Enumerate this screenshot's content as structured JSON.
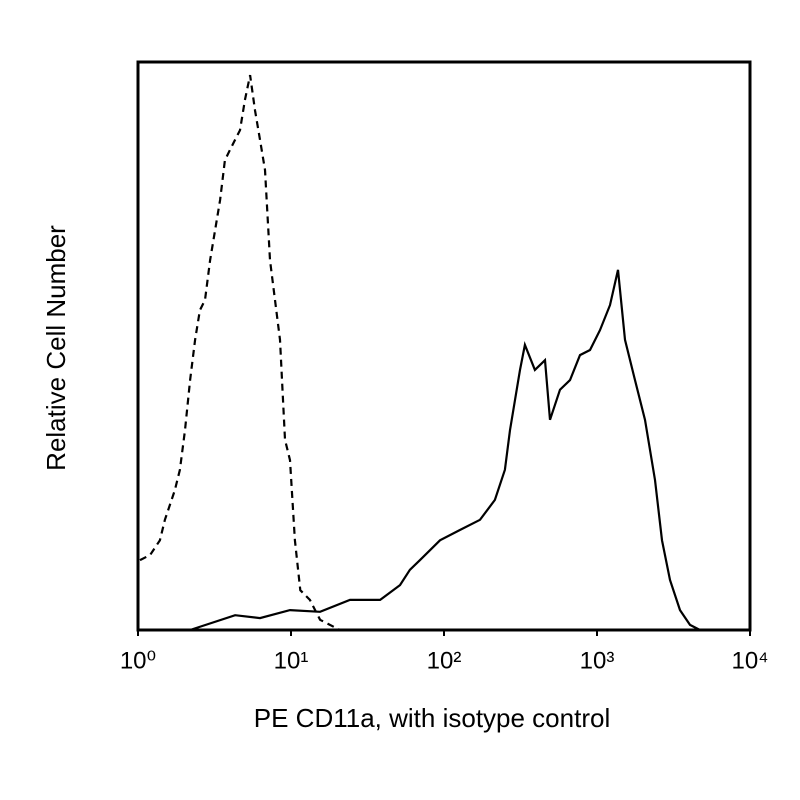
{
  "chart_data": {
    "type": "line",
    "x_label": "PE CD11a, with isotype control",
    "y_label": "Relative Cell Number",
    "xscale": "log",
    "xlim": [
      1,
      10000
    ],
    "xticks": [
      {
        "value": 1,
        "label": "10⁰"
      },
      {
        "value": 10,
        "label": "10¹"
      },
      {
        "value": 100,
        "label": "10²"
      },
      {
        "value": 1000,
        "label": "10³"
      },
      {
        "value": 10000,
        "label": "10⁴"
      }
    ],
    "ylim": [
      0,
      100
    ],
    "grid": false,
    "series": [
      {
        "color": "#000000",
        "dashed": true,
        "x": [
          1.03,
          1.2,
          1.39,
          1.5,
          1.74,
          1.88,
          2.03,
          2.19,
          2.36,
          2.54,
          2.74,
          2.96,
          3.19,
          3.44,
          3.7,
          3.99,
          4.31,
          4.64,
          5.0,
          5.4,
          5.82,
          6.27,
          6.76,
          7.29,
          7.86,
          8.48,
          9.14,
          9.85,
          10.6,
          11.5,
          13.3,
          15.5,
          20.9,
          51.6,
          1413
        ],
        "values": [
          12.3,
          13.2,
          15.8,
          19.4,
          24.6,
          28.2,
          35.2,
          44.0,
          51.1,
          56.3,
          58.1,
          65.1,
          70.4,
          75.7,
          82.7,
          84.5,
          86.3,
          88.0,
          93.3,
          97.7,
          91.5,
          86.3,
          81.0,
          65.1,
          58.1,
          51.1,
          33.5,
          29.9,
          15.8,
          7.0,
          5.3,
          1.8,
          0,
          0,
          0
        ]
      },
      {
        "color": "#000000",
        "dashed": false,
        "x": [
          2.19,
          4.31,
          6.27,
          9.85,
          15.5,
          24.3,
          38.2,
          51.6,
          59.9,
          69.7,
          94.2,
          127,
          172,
          215,
          250,
          270,
          291,
          314,
          338,
          393,
          457,
          493,
          573,
          666,
          774,
          900,
          1046,
          1216,
          1372,
          1524,
          1772,
          2060,
          2394,
          2660,
          3001,
          3487,
          4054,
          4713
        ],
        "values": [
          0,
          2.6,
          2.1,
          3.5,
          3.2,
          5.3,
          5.3,
          7.9,
          10.6,
          12.3,
          15.8,
          17.6,
          19.4,
          22.9,
          28.2,
          35.2,
          40.5,
          45.8,
          50.2,
          45.8,
          47.5,
          37.0,
          42.3,
          44.0,
          48.4,
          49.3,
          52.8,
          57.2,
          63.4,
          51.1,
          44.0,
          37.0,
          26.4,
          15.8,
          8.8,
          3.5,
          0.9,
          0
        ]
      }
    ]
  }
}
